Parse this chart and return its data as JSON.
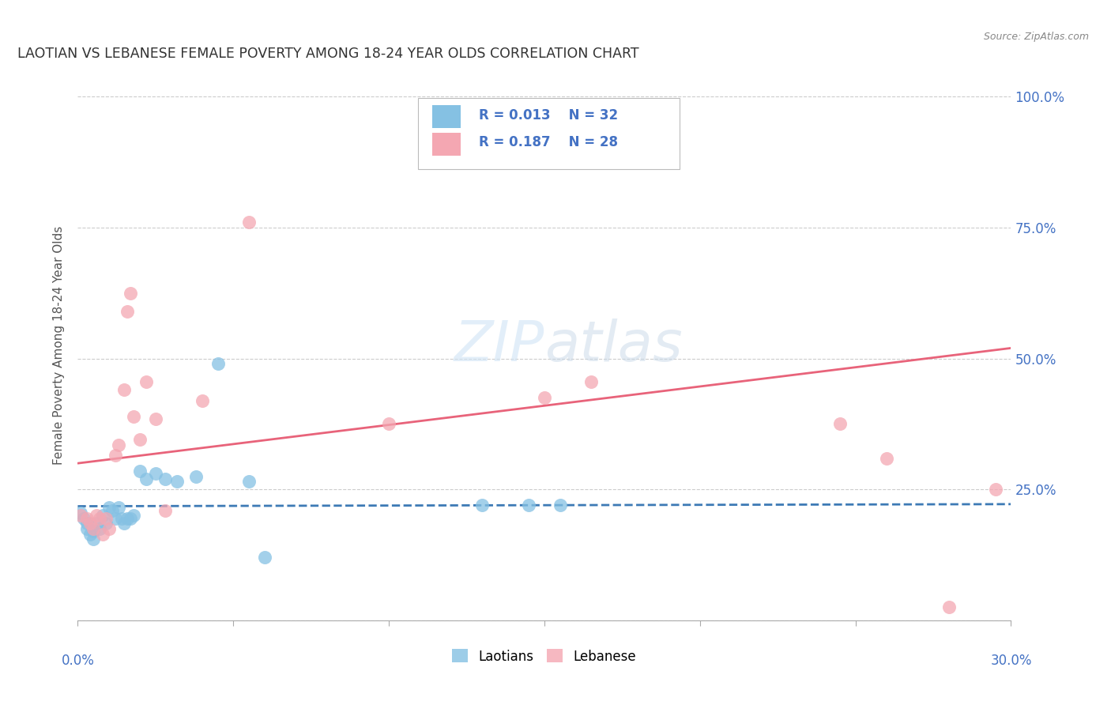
{
  "title": "LAOTIAN VS LEBANESE FEMALE POVERTY AMONG 18-24 YEAR OLDS CORRELATION CHART",
  "source": "Source: ZipAtlas.com",
  "ylabel": "Female Poverty Among 18-24 Year Olds",
  "xlim": [
    0.0,
    0.3
  ],
  "ylim": [
    0.0,
    1.05
  ],
  "laotian_color": "#85c1e3",
  "lebanese_color": "#f4a7b2",
  "laotian_line_color": "#3d7ab5",
  "lebanese_line_color": "#e8637a",
  "legend_R_laotian": "R = 0.013",
  "legend_N_laotian": "N = 32",
  "legend_R_lebanese": "R = 0.187",
  "legend_N_lebanese": "N = 28",
  "laotian_x": [
    0.001,
    0.002,
    0.003,
    0.003,
    0.004,
    0.005,
    0.005,
    0.006,
    0.007,
    0.008,
    0.009,
    0.01,
    0.011,
    0.012,
    0.013,
    0.014,
    0.015,
    0.016,
    0.017,
    0.018,
    0.02,
    0.022,
    0.025,
    0.028,
    0.032,
    0.038,
    0.045,
    0.055,
    0.06,
    0.13,
    0.145,
    0.155
  ],
  "laotian_y": [
    0.205,
    0.195,
    0.185,
    0.175,
    0.165,
    0.155,
    0.17,
    0.185,
    0.175,
    0.2,
    0.185,
    0.215,
    0.21,
    0.195,
    0.215,
    0.195,
    0.185,
    0.195,
    0.195,
    0.2,
    0.285,
    0.27,
    0.28,
    0.27,
    0.265,
    0.275,
    0.49,
    0.265,
    0.12,
    0.22,
    0.22,
    0.22
  ],
  "lebanese_x": [
    0.001,
    0.003,
    0.004,
    0.005,
    0.006,
    0.007,
    0.008,
    0.009,
    0.01,
    0.012,
    0.013,
    0.015,
    0.016,
    0.017,
    0.018,
    0.02,
    0.022,
    0.025,
    0.028,
    0.04,
    0.055,
    0.1,
    0.15,
    0.165,
    0.245,
    0.26,
    0.28,
    0.295
  ],
  "lebanese_y": [
    0.2,
    0.195,
    0.185,
    0.175,
    0.2,
    0.195,
    0.165,
    0.195,
    0.175,
    0.315,
    0.335,
    0.44,
    0.59,
    0.625,
    0.39,
    0.345,
    0.455,
    0.385,
    0.21,
    0.42,
    0.76,
    0.375,
    0.425,
    0.455,
    0.375,
    0.31,
    0.025,
    0.25
  ],
  "background_color": "#ffffff",
  "grid_color": "#cccccc",
  "title_color": "#333333",
  "axis_label_color": "#4472c4",
  "marker_size": 150
}
